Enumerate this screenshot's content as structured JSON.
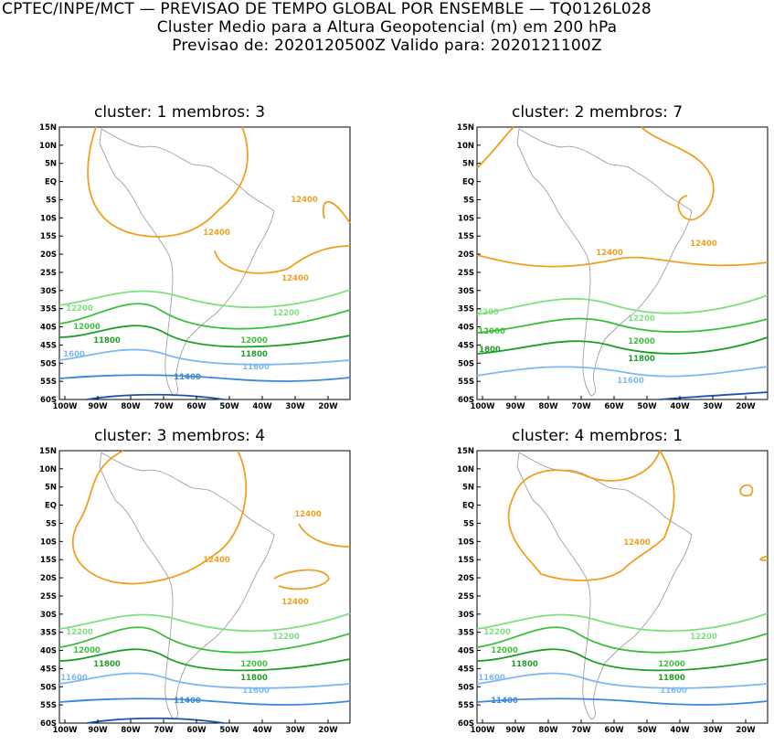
{
  "header": {
    "line1": "CPTEC/INPE/MCT — PREVISAO DE TEMPO GLOBAL POR ENSEMBLE — TQ0126L028",
    "line2": "Cluster Medio para a Altura Geopotencial (m) em 200 hPa",
    "line3": "Previsao de: 2020120500Z    Valido para: 2020121100Z"
  },
  "axes": {
    "lat_labels": [
      "15N",
      "10N",
      "5N",
      "EQ",
      "5S",
      "10S",
      "15S",
      "20S",
      "25S",
      "30S",
      "35S",
      "40S",
      "45S",
      "50S",
      "55S",
      "60S"
    ],
    "lon_labels": [
      "100W",
      "90W",
      "80W",
      "70W",
      "60W",
      "50W",
      "40W",
      "30W",
      "20W"
    ]
  },
  "colors": {
    "c12400": "#f0a020",
    "c12200": "#7fe07f",
    "c12000": "#3cc03c",
    "c11800": "#1e9e28",
    "c11600": "#7fb8f0",
    "c11400": "#3c88dc",
    "c11200": "#1e50b4",
    "coast": "#a0a0a0"
  },
  "panels": [
    {
      "title": "cluster: 1   membros: 3",
      "labels": [
        "12400",
        "12400",
        "12400",
        "12200",
        "12200",
        "12000",
        "12000",
        "11800",
        "11800",
        "1600",
        "11600",
        "11400"
      ]
    },
    {
      "title": "cluster: 2   membros: 7",
      "labels": [
        "12400",
        "12400",
        "2200",
        "12200",
        "12000",
        "12000",
        "1800",
        "11800",
        "11600"
      ]
    },
    {
      "title": "cluster: 3   membros: 4",
      "labels": [
        "12400",
        "12400",
        "12400",
        "12200",
        "12200",
        "12000",
        "12000",
        "11800",
        "11800",
        "11600",
        "11600",
        "11400"
      ]
    },
    {
      "title": "cluster: 4   membros: 1",
      "labels": [
        "12400",
        "12200",
        "12200",
        "12000",
        "12000",
        "11800",
        "11800",
        "11600",
        "11600",
        "11400"
      ]
    }
  ]
}
